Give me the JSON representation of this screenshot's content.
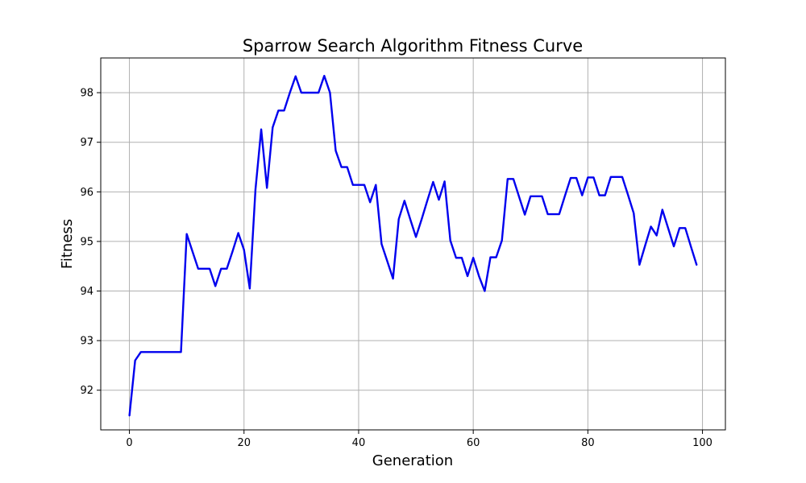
{
  "chart_data": {
    "type": "line",
    "title": "Sparrow Search Algorithm Fitness Curve",
    "xlabel": "Generation",
    "ylabel": "Fitness",
    "xlim": [
      -5,
      104
    ],
    "ylim": [
      91.2,
      98.7
    ],
    "xticks": [
      0,
      20,
      40,
      60,
      80,
      100
    ],
    "yticks": [
      92,
      93,
      94,
      95,
      96,
      97,
      98
    ],
    "grid": true,
    "line_color": "#0000ee",
    "series": [
      {
        "x": [
          0,
          1,
          2,
          3,
          4,
          5,
          6,
          7,
          8,
          9,
          10,
          11,
          12,
          13,
          14,
          15,
          16,
          17,
          18,
          19,
          20,
          21,
          22,
          23,
          24,
          25,
          26,
          27,
          28,
          29,
          30,
          31,
          32,
          33,
          34,
          35,
          36,
          37,
          38,
          39,
          40,
          41,
          42,
          43,
          44,
          45,
          46,
          47,
          48,
          49,
          50,
          51,
          52,
          53,
          54,
          55,
          56,
          57,
          58,
          59,
          60,
          61,
          62,
          63,
          64,
          65,
          66,
          67,
          68,
          69,
          70,
          71,
          72,
          73,
          74,
          75,
          76,
          77,
          78,
          79,
          80,
          81,
          82,
          83,
          84,
          85,
          86,
          87,
          88,
          89,
          90,
          91,
          92,
          93,
          94,
          95,
          96,
          97,
          98,
          99
        ],
        "y": [
          91.48,
          92.6,
          92.77,
          92.77,
          92.77,
          92.77,
          92.77,
          92.77,
          92.77,
          92.77,
          95.15,
          94.8,
          94.45,
          94.45,
          94.45,
          94.1,
          94.45,
          94.45,
          94.8,
          95.17,
          94.83,
          94.05,
          96.05,
          97.26,
          96.08,
          97.3,
          97.64,
          97.64,
          98.0,
          98.33,
          98.0,
          98.0,
          98.0,
          98.0,
          98.34,
          98.0,
          96.83,
          96.5,
          96.5,
          96.14,
          96.14,
          96.14,
          95.79,
          96.14,
          94.95,
          94.6,
          94.25,
          95.45,
          95.82,
          95.45,
          95.09,
          95.45,
          95.83,
          96.2,
          95.84,
          96.21,
          95.02,
          94.67,
          94.67,
          94.3,
          94.67,
          94.3,
          94.0,
          94.68,
          94.68,
          95.02,
          96.26,
          96.26,
          95.9,
          95.54,
          95.91,
          95.91,
          95.91,
          95.55,
          95.55,
          95.55,
          95.92,
          96.28,
          96.28,
          95.93,
          96.29,
          96.29,
          95.93,
          95.93,
          96.3,
          96.3,
          96.3,
          95.94,
          95.57,
          94.53,
          94.92,
          95.3,
          95.12,
          95.64,
          95.27,
          94.9,
          95.27,
          95.27,
          94.89,
          94.52
        ]
      }
    ]
  }
}
